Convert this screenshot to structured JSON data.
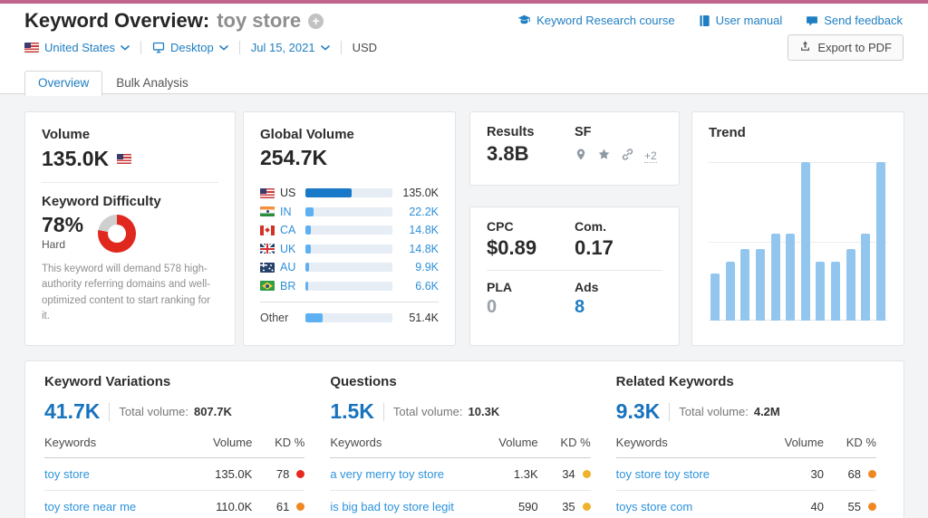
{
  "page": {
    "topbar_color": "#c0648c",
    "accent_blue": "#1f7ec2",
    "content_bg": "#f3f4f5"
  },
  "header": {
    "title": "Keyword Overview:",
    "keyword": "toy store",
    "links": [
      {
        "label": "Keyword Research course",
        "icon": "graduation-cap-icon"
      },
      {
        "label": "User manual",
        "icon": "book-icon"
      },
      {
        "label": "Send feedback",
        "icon": "speech-bubble-icon"
      }
    ],
    "export_label": "Export to PDF",
    "filters": {
      "country": "United States",
      "device": "Desktop",
      "date": "Jul 15, 2021",
      "currency": "USD"
    },
    "tabs": [
      {
        "label": "Overview",
        "active": true
      },
      {
        "label": "Bulk Analysis",
        "active": false
      }
    ]
  },
  "volume_card": {
    "volume_label": "Volume",
    "volume_value": "135.0K",
    "kd_label": "Keyword Difficulty",
    "kd_value": "78%",
    "kd_percent": 78,
    "kd_level": "Hard",
    "kd_ring_color": "#e0281e",
    "kd_ring_rest_color": "#cfcfcf",
    "kd_description": "This keyword will demand 578 high-authority referring domains and well-optimized content to start ranking for it."
  },
  "global_volume_card": {
    "title": "Global Volume",
    "value": "254.7K",
    "rows": [
      {
        "code": "US",
        "flag": "us",
        "value": "135.0K",
        "pct": 53,
        "selected": true
      },
      {
        "code": "IN",
        "flag": "in",
        "value": "22.2K",
        "pct": 9,
        "selected": false
      },
      {
        "code": "CA",
        "flag": "ca",
        "value": "14.8K",
        "pct": 6,
        "selected": false
      },
      {
        "code": "UK",
        "flag": "uk",
        "value": "14.8K",
        "pct": 6,
        "selected": false
      },
      {
        "code": "AU",
        "flag": "au",
        "value": "9.9K",
        "pct": 4,
        "selected": false
      },
      {
        "code": "BR",
        "flag": "br",
        "value": "6.6K",
        "pct": 3,
        "selected": false
      }
    ],
    "other_row": {
      "label": "Other",
      "value": "51.4K",
      "pct": 20
    }
  },
  "results_card": {
    "results_label": "Results",
    "results_value": "3.8B",
    "sf_label": "SF",
    "sf_icons": [
      "location-pin-icon",
      "star-icon",
      "link-icon"
    ],
    "sf_more": "+2"
  },
  "cpc_card": {
    "cpc_label": "CPC",
    "cpc_value": "$0.89",
    "com_label": "Com.",
    "com_value": "0.17",
    "pla_label": "PLA",
    "pla_value": "0",
    "ads_label": "Ads",
    "ads_value": "8"
  },
  "trend_card": {
    "title": "Trend",
    "chart_data": {
      "type": "bar",
      "values_pct_of_max": [
        30,
        37,
        45,
        45,
        55,
        55,
        100,
        37,
        37,
        45,
        55,
        100
      ],
      "bar_color": "#93c6ee",
      "gridlines": [
        0,
        50,
        100
      ]
    }
  },
  "tables": [
    {
      "title": "Keyword Variations",
      "count": "41.7K",
      "total_label": "Total volume:",
      "total": "807.7K",
      "columns": [
        "Keywords",
        "Volume",
        "KD %"
      ],
      "rows": [
        {
          "keyword": "toy store",
          "volume": "135.0K",
          "kd": "78",
          "kd_color": "#e8281e"
        },
        {
          "keyword": "toy store near me",
          "volume": "110.0K",
          "kd": "61",
          "kd_color": "#ef8722"
        }
      ]
    },
    {
      "title": "Questions",
      "count": "1.5K",
      "total_label": "Total volume:",
      "total": "10.3K",
      "columns": [
        "Keywords",
        "Volume",
        "KD %"
      ],
      "rows": [
        {
          "keyword": "a very merry toy store",
          "volume": "1.3K",
          "kd": "34",
          "kd_color": "#efb22d"
        },
        {
          "keyword": "is big bad toy store legit",
          "volume": "590",
          "kd": "35",
          "kd_color": "#efb22d"
        }
      ]
    },
    {
      "title": "Related Keywords",
      "count": "9.3K",
      "total_label": "Total volume:",
      "total": "4.2M",
      "columns": [
        "Keywords",
        "Volume",
        "KD %"
      ],
      "rows": [
        {
          "keyword": "toy store toy store",
          "volume": "30",
          "kd": "68",
          "kd_color": "#ef8722"
        },
        {
          "keyword": "toys store com",
          "volume": "40",
          "kd": "55",
          "kd_color": "#ef8722"
        }
      ]
    }
  ]
}
